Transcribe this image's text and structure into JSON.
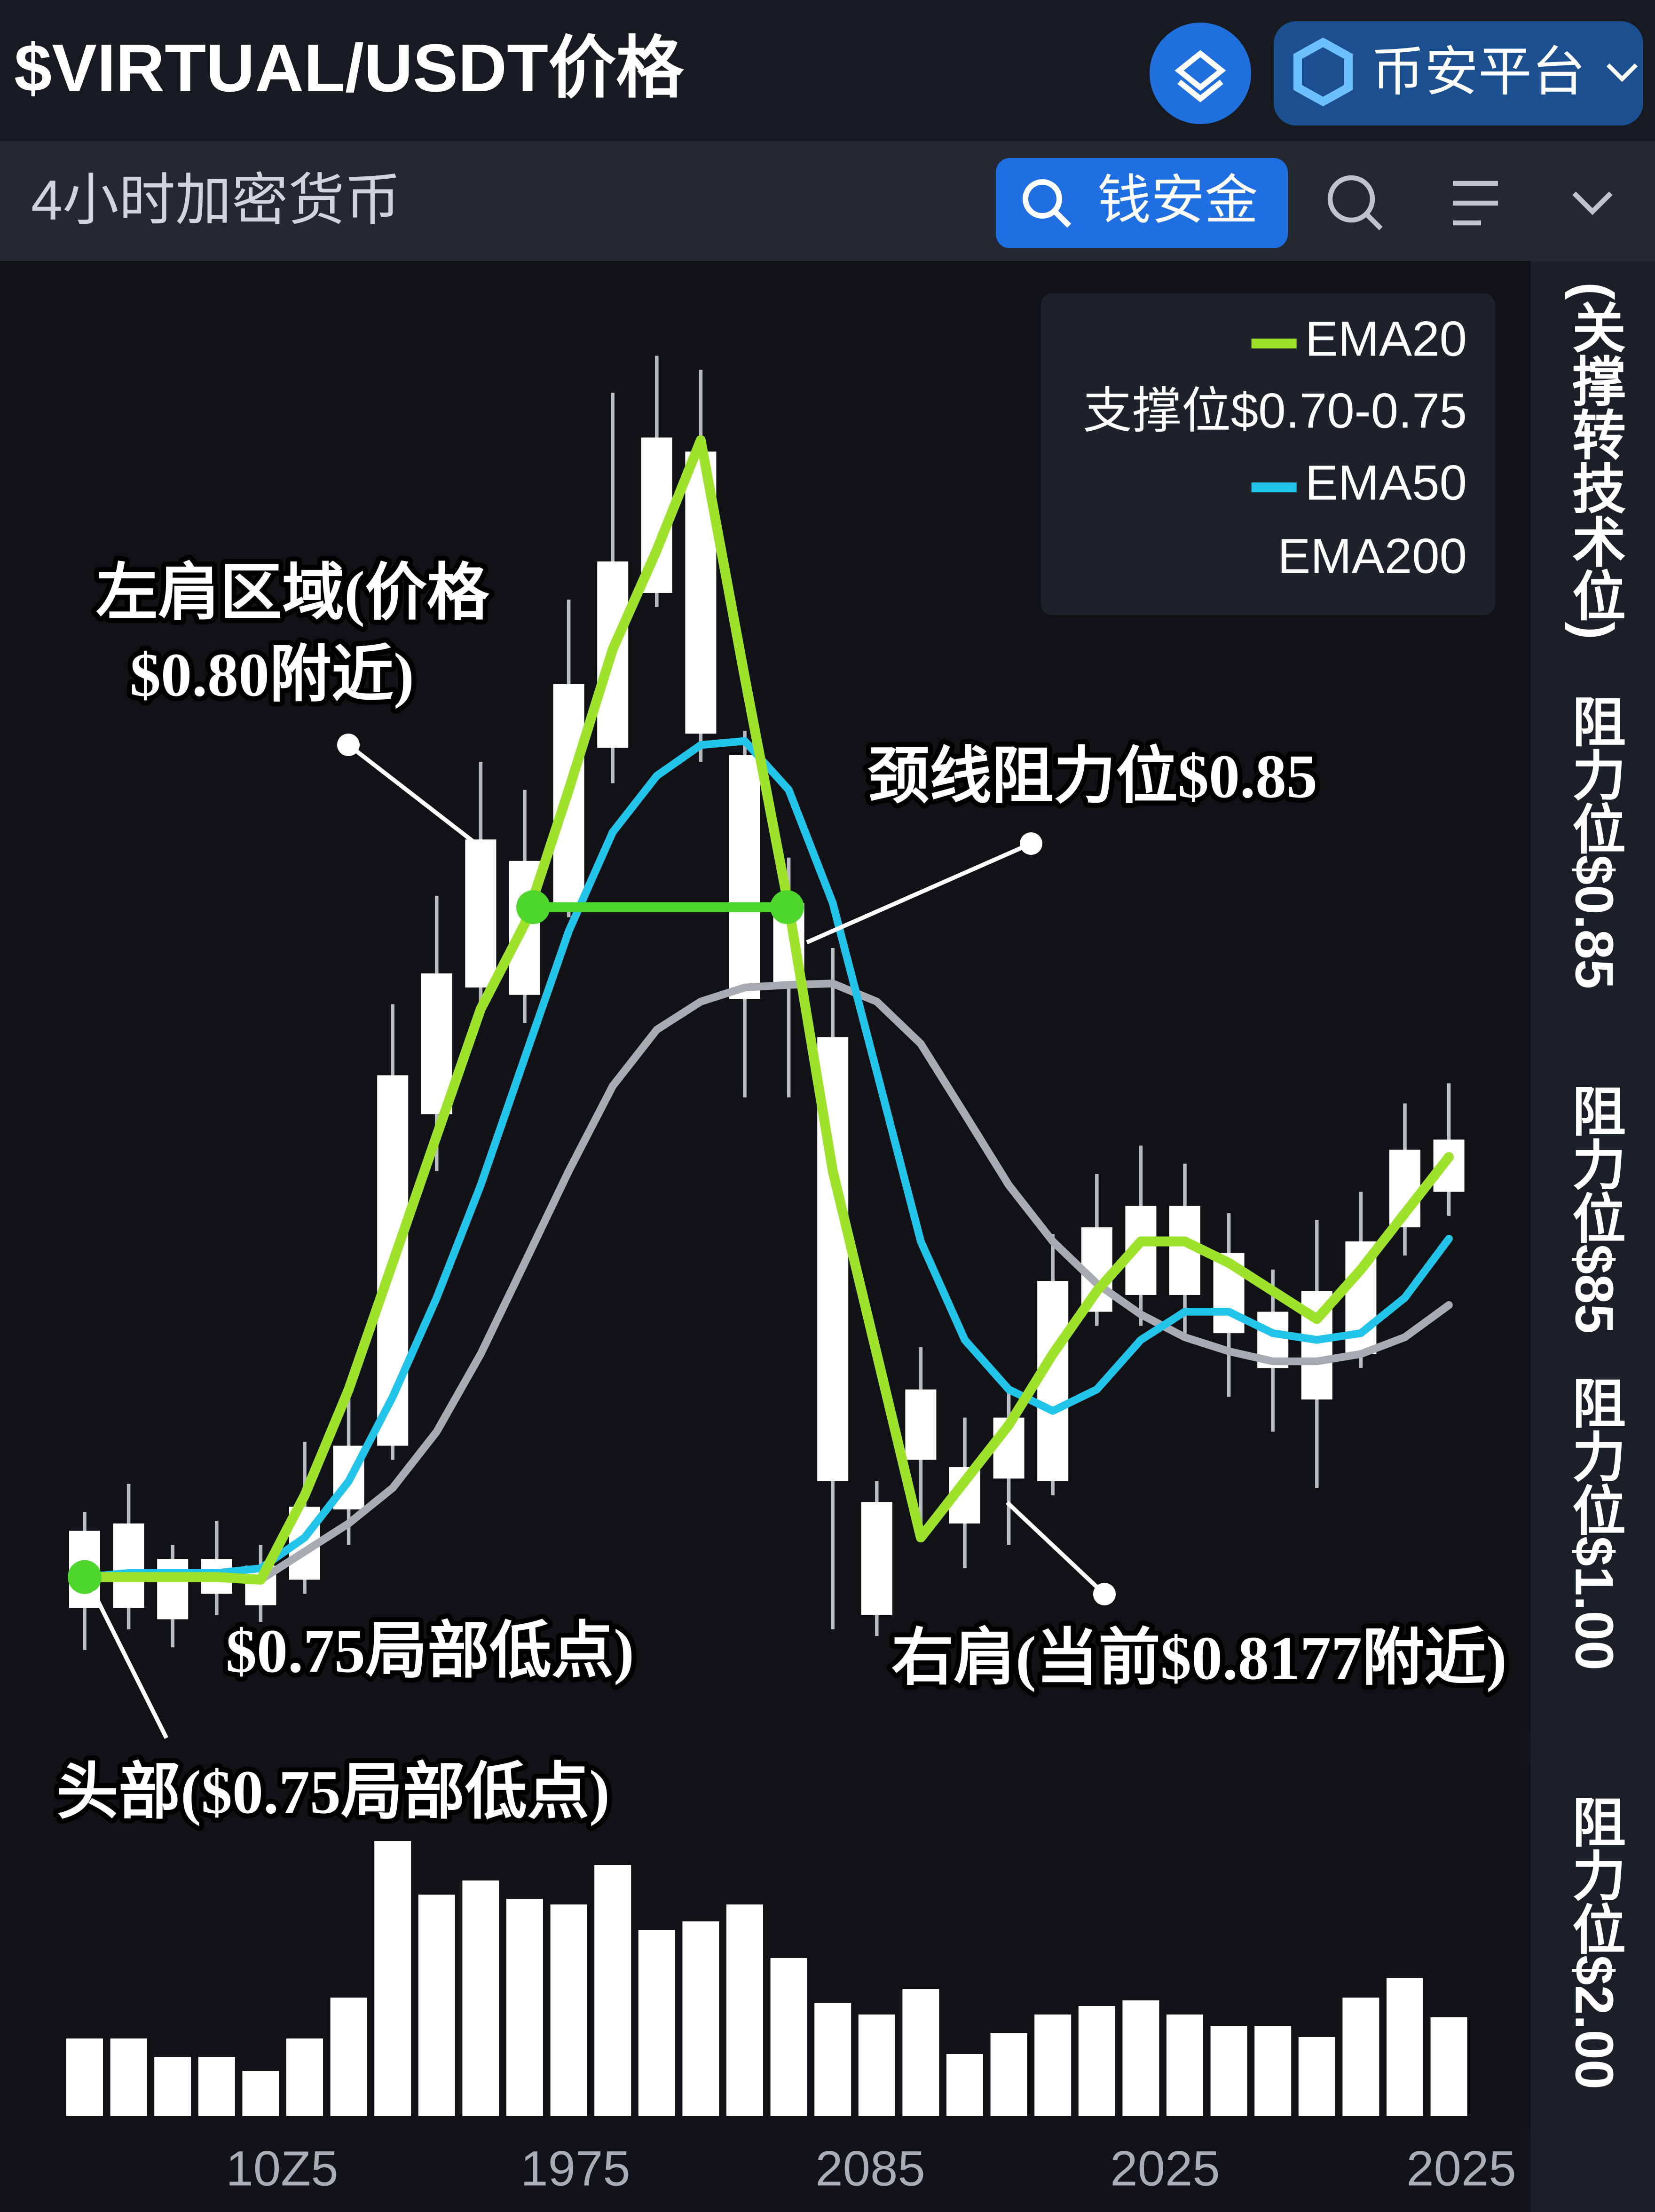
{
  "header": {
    "title": "$VIRTUAL/USDT价格",
    "platform": "币安平台"
  },
  "toolbar": {
    "timeframe": "4小时加密货币",
    "search_button": "钱安金"
  },
  "chart_data": {
    "type": "candlestick",
    "open": [
      0.7454,
      0.7454,
      0.7527,
      0.7475,
      0.7458,
      0.7496,
      0.7601,
      0.7696,
      0.8191,
      0.838,
      0.8369,
      0.8506,
      0.8738,
      0.8969,
      0.918,
      0.8727,
      0.8506,
      0.8306,
      0.7612,
      0.7675,
      0.7664,
      0.7647,
      0.7643,
      0.7896,
      0.7921,
      0.8054,
      0.7984,
      0.7896,
      0.7927,
      0.7833,
      0.8022,
      0.8075
    ],
    "high": [
      0.7597,
      0.7639,
      0.7548,
      0.7584,
      0.7548,
      0.7702,
      0.778,
      0.8355,
      0.8517,
      0.8717,
      0.8675,
      0.8959,
      0.9268,
      0.9323,
      0.9302,
      0.8763,
      0.8574,
      0.8439,
      0.7643,
      0.7843,
      0.7738,
      0.778,
      0.8012,
      0.8102,
      0.8144,
      0.8117,
      0.8043,
      0.7959,
      0.8033,
      0.8075,
      0.8207,
      0.8237
    ],
    "low": [
      0.7391,
      0.7422,
      0.7395,
      0.7443,
      0.7433,
      0.7475,
      0.7548,
      0.7675,
      0.8106,
      0.8338,
      0.8327,
      0.8485,
      0.8685,
      0.8948,
      0.8717,
      0.8216,
      0.8216,
      0.7422,
      0.7412,
      0.7559,
      0.7513,
      0.7548,
      0.7622,
      0.7875,
      0.7875,
      0.7854,
      0.7769,
      0.7717,
      0.7633,
      0.7812,
      0.798,
      0.8039
    ],
    "close": [
      0.7569,
      0.758,
      0.7437,
      0.7527,
      0.7517,
      0.7605,
      0.7696,
      0.8249,
      0.8401,
      0.8601,
      0.8569,
      0.8833,
      0.9016,
      0.9201,
      0.8759,
      0.8363,
      0.838,
      0.7643,
      0.7443,
      0.778,
      0.758,
      0.7738,
      0.7942,
      0.8022,
      0.8054,
      0.7921,
      0.7864,
      0.7812,
      0.7765,
      0.8001,
      0.8138,
      0.8153
    ],
    "candle_color": "#ffffff",
    "ylim": [
      0.7285,
      0.9454
    ],
    "series": [
      {
        "name": "EMA20",
        "color": "#9fe22c",
        "values": [
          0.75,
          0.75,
          0.75,
          0.75,
          0.7496,
          0.7622,
          0.778,
          0.7969,
          0.8159,
          0.8348,
          0.8475,
          0.8675,
          0.8885,
          0.9033,
          0.9197,
          0.8843,
          0.85,
          0.8106,
          0.7833,
          0.7559,
          0.7643,
          0.7727,
          0.7833,
          0.7927,
          0.8001,
          0.8001,
          0.7969,
          0.7927,
          0.7885,
          0.7959,
          0.8043,
          0.8127
        ]
      },
      {
        "name": "EMA50",
        "color": "#22c4ea",
        "values": [
          0.75,
          0.7506,
          0.7506,
          0.7506,
          0.7513,
          0.7559,
          0.7643,
          0.7769,
          0.7917,
          0.8085,
          0.8275,
          0.8464,
          0.8612,
          0.8696,
          0.8742,
          0.8748,
          0.8675,
          0.8506,
          0.8254,
          0.8001,
          0.7854,
          0.778,
          0.7748,
          0.778,
          0.7854,
          0.7896,
          0.7896,
          0.7864,
          0.7854,
          0.7864,
          0.7917,
          0.8005
        ]
      },
      {
        "name": "EMA200",
        "color": "#a8abb1",
        "values": [
          null,
          null,
          null,
          null,
          0.7496,
          0.7538,
          0.758,
          0.7633,
          0.7717,
          0.7833,
          0.7969,
          0.8106,
          0.8233,
          0.8317,
          0.8359,
          0.838,
          0.8384,
          0.8386,
          0.8359,
          0.8296,
          0.8191,
          0.8085,
          0.8001,
          0.7938,
          0.7892,
          0.7858,
          0.7837,
          0.7822,
          0.7822,
          0.7833,
          0.7858,
          0.7906
        ]
      }
    ],
    "legend_note": "支撑位$0.70-0.75",
    "neckline": 0.85,
    "neckline_color": "#4fd62c",
    "annotations": {
      "left_shoulder": [
        "左肩区域(价格",
        "$0.80附近)"
      ],
      "neckline": "颈线阻力位$0.85",
      "low": "$0.75局部低点)",
      "head": "头部($0.75局部低点)",
      "right_shoulder": "右肩(当前$0.8177附近)"
    },
    "right_labels": [
      "(关撑转技术位)",
      "阻力位$0.85",
      "阻力位$85",
      "阻力位$1.00",
      "阻力位$2.00"
    ],
    "x_labels": [
      "10Z5",
      "1975",
      "2085",
      "2025",
      "2025"
    ],
    "volume": {
      "values": [
        55,
        55,
        42,
        42,
        32,
        55,
        84,
        195,
        157,
        167,
        154,
        150,
        178,
        132,
        138,
        150,
        112,
        80,
        72,
        90,
        44,
        59,
        72,
        78,
        82,
        72,
        64,
        64,
        56,
        84,
        98,
        70
      ],
      "ylim": [
        0,
        200
      ],
      "color": "#ffffff"
    }
  }
}
